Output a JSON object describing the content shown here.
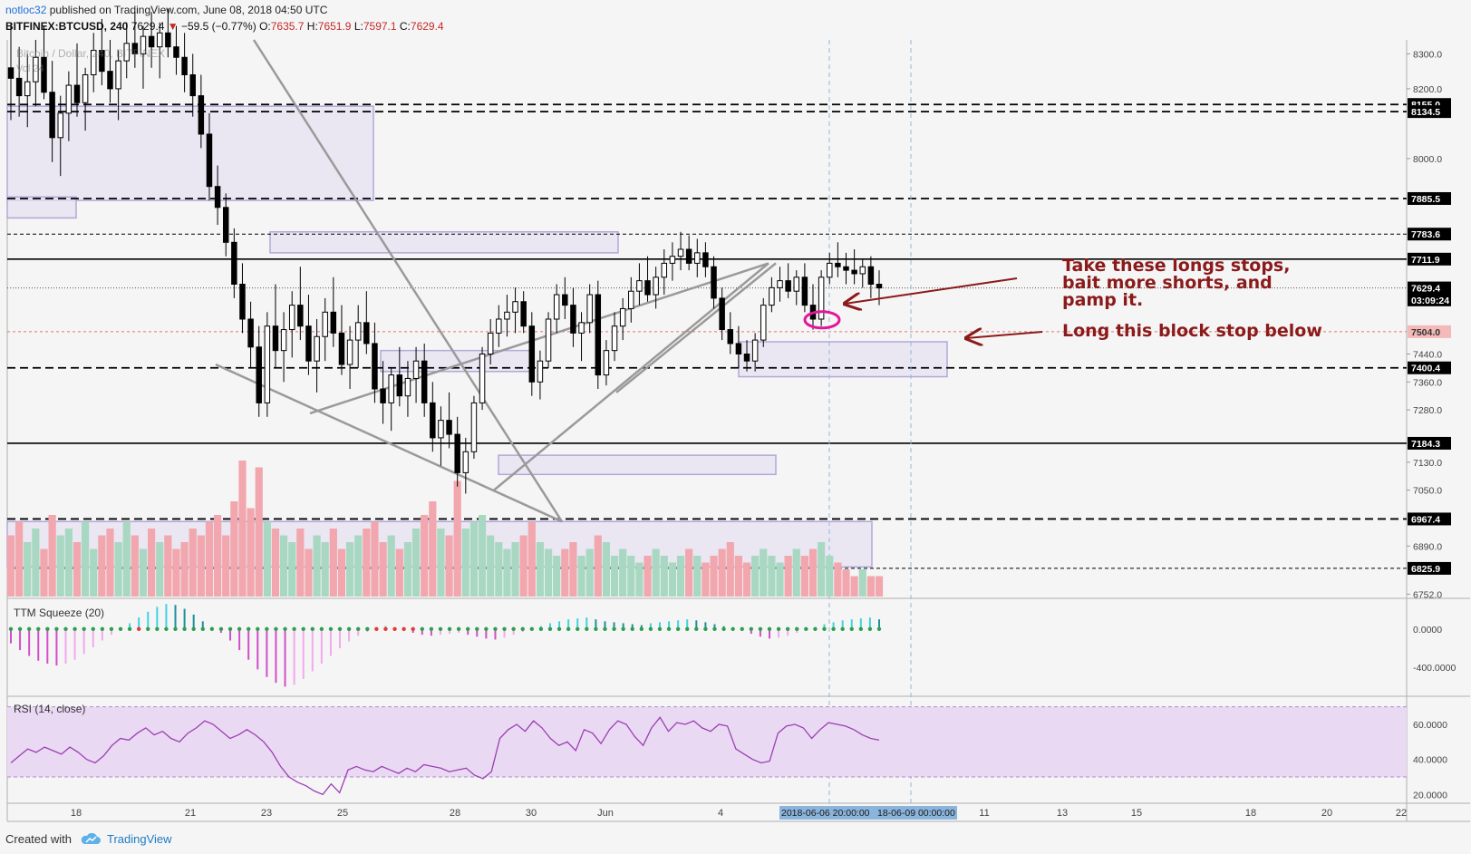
{
  "header": {
    "user": "notloc32",
    "published": "published on TradingView.com, June 08, 2018 04:50 UTC",
    "symbol": "BITFINEX:BTCUSD, 240",
    "last": "7629.4",
    "change": "−59.5 (−0.77%)",
    "o_label": "O:",
    "o": "7635.7",
    "h_label": "H:",
    "h": "7651.9",
    "l_label": "L:",
    "l": "7597.1",
    "c_label": "C:",
    "c": "7629.4",
    "ghost_legend": "Bitcoin / Dollar, 240, BITFINEX",
    "ghost_vol": "Vol 24"
  },
  "annotations": {
    "note1": "Take these longs stops,\nbait more shorts, and\npamp it.",
    "note2": "Long this block stop below"
  },
  "footer": {
    "created": "Created with",
    "brand": "TradingView"
  },
  "colors": {
    "up": "#ffffff",
    "down": "#000000",
    "annotation": "#8b1a1a",
    "box_fill": "#e6e1f2",
    "box_stroke": "#b3a8d8",
    "vol_up": "#a8d8c2",
    "vol_down": "#f1a7ad",
    "rsi_bg": "#ead9f2",
    "rsi_line": "#9c3fb5",
    "highlight_circle": "#e3169a"
  },
  "chart_data": [
    {
      "type": "candlestick",
      "title": "BITFINEX:BTCUSD, 240",
      "y_ticks": [
        8300.0,
        8200.0,
        8000.0,
        7440.0,
        7360.0,
        7280.0,
        7130.0,
        7050.0,
        6890.0,
        6752.0
      ],
      "ylim": [
        6740,
        8340
      ],
      "x_ticks": [
        "18",
        "21",
        "23",
        "25",
        "28",
        "30",
        "Jun",
        "4",
        "11",
        "13",
        "15",
        "18",
        "20",
        "22"
      ],
      "crosshair_x_label": "2018-06-06 20:00:00",
      "crosshair_x_label2": "18-06-09 00:00:00",
      "horizontal_levels": [
        {
          "label": "8155.0",
          "value": 8155.0,
          "style": "dashed"
        },
        {
          "label": "8134.5",
          "value": 8134.5,
          "style": "dashed"
        },
        {
          "label": "7885.5",
          "value": 7885.5,
          "style": "dashed"
        },
        {
          "label": "7783.6",
          "value": 7783.6,
          "style": "dotted"
        },
        {
          "label": "7711.9",
          "value": 7711.9,
          "style": "solid"
        },
        {
          "label": "7629.4",
          "value": 7629.4,
          "style": "price"
        },
        {
          "label": "03:09:24",
          "value": 7595.0,
          "style": "timer"
        },
        {
          "label": "7504.0",
          "value": 7504.0,
          "style": "red"
        },
        {
          "label": "7400.4",
          "value": 7400.4,
          "style": "dashed"
        },
        {
          "label": "7184.3",
          "value": 7184.3,
          "style": "solid"
        },
        {
          "label": "6967.4",
          "value": 6967.4,
          "style": "dashed"
        },
        {
          "label": "6825.9",
          "value": 6825.9,
          "style": "dotted"
        }
      ],
      "candles": [
        [
          8260,
          8390,
          8110,
          8230
        ],
        [
          8230,
          8320,
          8120,
          8180
        ],
        [
          8180,
          8300,
          8090,
          8220
        ],
        [
          8220,
          8340,
          8150,
          8290
        ],
        [
          8290,
          8380,
          8170,
          8190
        ],
        [
          8190,
          8280,
          7990,
          8060
        ],
        [
          8060,
          8180,
          7950,
          8130
        ],
        [
          8130,
          8250,
          8050,
          8210
        ],
        [
          8210,
          8330,
          8120,
          8160
        ],
        [
          8160,
          8260,
          8080,
          8240
        ],
        [
          8240,
          8360,
          8190,
          8310
        ],
        [
          8310,
          8400,
          8210,
          8250
        ],
        [
          8250,
          8340,
          8160,
          8200
        ],
        [
          8200,
          8310,
          8110,
          8280
        ],
        [
          8280,
          8390,
          8230,
          8330
        ],
        [
          8330,
          8420,
          8260,
          8300
        ],
        [
          8300,
          8380,
          8200,
          8350
        ],
        [
          8350,
          8420,
          8260,
          8320
        ],
        [
          8320,
          8390,
          8230,
          8360
        ],
        [
          8360,
          8430,
          8290,
          8320
        ],
        [
          8320,
          8380,
          8240,
          8290
        ],
        [
          8290,
          8360,
          8190,
          8240
        ],
        [
          8240,
          8300,
          8120,
          8180
        ],
        [
          8180,
          8240,
          8030,
          8070
        ],
        [
          8070,
          8130,
          7880,
          7920
        ],
        [
          7920,
          7980,
          7810,
          7860
        ],
        [
          7860,
          7900,
          7720,
          7760
        ],
        [
          7760,
          7800,
          7600,
          7640
        ],
        [
          7640,
          7700,
          7500,
          7540
        ],
        [
          7540,
          7590,
          7400,
          7460
        ],
        [
          7460,
          7520,
          7260,
          7300
        ],
        [
          7300,
          7560,
          7260,
          7520
        ],
        [
          7520,
          7640,
          7400,
          7450
        ],
        [
          7450,
          7560,
          7360,
          7510
        ],
        [
          7510,
          7620,
          7430,
          7580
        ],
        [
          7580,
          7690,
          7480,
          7520
        ],
        [
          7520,
          7610,
          7380,
          7420
        ],
        [
          7420,
          7540,
          7330,
          7490
        ],
        [
          7490,
          7600,
          7420,
          7560
        ],
        [
          7560,
          7660,
          7460,
          7500
        ],
        [
          7500,
          7580,
          7380,
          7410
        ],
        [
          7410,
          7520,
          7340,
          7480
        ],
        [
          7480,
          7580,
          7400,
          7530
        ],
        [
          7530,
          7620,
          7440,
          7470
        ],
        [
          7470,
          7530,
          7300,
          7340
        ],
        [
          7340,
          7420,
          7240,
          7300
        ],
        [
          7300,
          7400,
          7220,
          7380
        ],
        [
          7380,
          7460,
          7290,
          7320
        ],
        [
          7320,
          7420,
          7260,
          7370
        ],
        [
          7370,
          7460,
          7300,
          7420
        ],
        [
          7420,
          7470,
          7260,
          7300
        ],
        [
          7300,
          7360,
          7160,
          7200
        ],
        [
          7200,
          7290,
          7120,
          7250
        ],
        [
          7250,
          7330,
          7170,
          7210
        ],
        [
          7210,
          7260,
          7060,
          7100
        ],
        [
          7100,
          7200,
          7040,
          7160
        ],
        [
          7160,
          7320,
          7140,
          7300
        ],
        [
          7300,
          7460,
          7280,
          7440
        ],
        [
          7440,
          7540,
          7410,
          7500
        ],
        [
          7500,
          7580,
          7460,
          7540
        ],
        [
          7540,
          7610,
          7490,
          7560
        ],
        [
          7560,
          7630,
          7500,
          7590
        ],
        [
          7590,
          7620,
          7500,
          7520
        ],
        [
          7520,
          7560,
          7320,
          7360
        ],
        [
          7360,
          7450,
          7310,
          7420
        ],
        [
          7420,
          7560,
          7400,
          7540
        ],
        [
          7540,
          7640,
          7500,
          7610
        ],
        [
          7610,
          7660,
          7540,
          7580
        ],
        [
          7580,
          7630,
          7460,
          7500
        ],
        [
          7500,
          7560,
          7420,
          7530
        ],
        [
          7530,
          7640,
          7500,
          7610
        ],
        [
          7610,
          7650,
          7340,
          7380
        ],
        [
          7380,
          7480,
          7350,
          7450
        ],
        [
          7450,
          7560,
          7420,
          7520
        ],
        [
          7520,
          7600,
          7480,
          7570
        ],
        [
          7570,
          7660,
          7530,
          7620
        ],
        [
          7620,
          7700,
          7580,
          7650
        ],
        [
          7650,
          7720,
          7590,
          7610
        ],
        [
          7610,
          7690,
          7570,
          7660
        ],
        [
          7660,
          7740,
          7610,
          7700
        ],
        [
          7700,
          7760,
          7650,
          7720
        ],
        [
          7720,
          7790,
          7680,
          7740
        ],
        [
          7740,
          7780,
          7680,
          7700
        ],
        [
          7700,
          7770,
          7660,
          7730
        ],
        [
          7730,
          7760,
          7660,
          7690
        ],
        [
          7690,
          7720,
          7570,
          7600
        ],
        [
          7600,
          7630,
          7480,
          7510
        ],
        [
          7510,
          7560,
          7440,
          7470
        ],
        [
          7470,
          7520,
          7400,
          7440
        ],
        [
          7440,
          7480,
          7390,
          7420
        ],
        [
          7420,
          7500,
          7390,
          7480
        ],
        [
          7480,
          7600,
          7460,
          7580
        ],
        [
          7580,
          7660,
          7560,
          7630
        ],
        [
          7630,
          7690,
          7590,
          7650
        ],
        [
          7650,
          7700,
          7600,
          7620
        ],
        [
          7620,
          7680,
          7580,
          7660
        ],
        [
          7660,
          7700,
          7560,
          7580
        ],
        [
          7580,
          7640,
          7510,
          7540
        ],
        [
          7540,
          7680,
          7520,
          7660
        ],
        [
          7660,
          7730,
          7640,
          7700
        ],
        [
          7700,
          7760,
          7660,
          7690
        ],
        [
          7690,
          7730,
          7640,
          7680
        ],
        [
          7680,
          7740,
          7640,
          7670
        ],
        [
          7670,
          7710,
          7630,
          7690
        ],
        [
          7690,
          7720,
          7600,
          7640
        ],
        [
          7640,
          7680,
          7580,
          7629.4
        ]
      ]
    },
    {
      "type": "bar",
      "title": "Volume",
      "values_note": "relative volume per candle (0-1)",
      "values": [
        0.45,
        0.55,
        0.4,
        0.5,
        0.35,
        0.6,
        0.45,
        0.5,
        0.4,
        0.55,
        0.35,
        0.45,
        0.5,
        0.4,
        0.55,
        0.45,
        0.35,
        0.5,
        0.4,
        0.45,
        0.35,
        0.4,
        0.5,
        0.45,
        0.55,
        0.6,
        0.45,
        0.7,
        1.0,
        0.65,
        0.95,
        0.55,
        0.5,
        0.45,
        0.4,
        0.5,
        0.35,
        0.45,
        0.4,
        0.5,
        0.35,
        0.4,
        0.45,
        0.5,
        0.55,
        0.4,
        0.45,
        0.35,
        0.4,
        0.5,
        0.6,
        0.7,
        0.5,
        0.45,
        0.85,
        0.5,
        0.55,
        0.6,
        0.45,
        0.4,
        0.35,
        0.4,
        0.45,
        0.55,
        0.4,
        0.35,
        0.3,
        0.35,
        0.4,
        0.3,
        0.35,
        0.45,
        0.4,
        0.3,
        0.35,
        0.3,
        0.25,
        0.3,
        0.35,
        0.3,
        0.25,
        0.3,
        0.35,
        0.3,
        0.25,
        0.3,
        0.35,
        0.4,
        0.3,
        0.25,
        0.3,
        0.35,
        0.3,
        0.25,
        0.3,
        0.35,
        0.3,
        0.35,
        0.4,
        0.3,
        0.25,
        0.2,
        0.15,
        0.2,
        0.15,
        0.15
      ]
    },
    {
      "type": "bar",
      "title": "TTM Squeeze (20)",
      "y_ticks": [
        0.0,
        -400.0
      ],
      "y_tick_labels": [
        "0.0000",
        "-400.0000"
      ],
      "ylim": [
        -700,
        300
      ],
      "values": [
        -150,
        -220,
        -280,
        -330,
        -360,
        -380,
        -360,
        -320,
        -260,
        -190,
        -120,
        -60,
        0,
        60,
        120,
        180,
        230,
        260,
        250,
        210,
        150,
        80,
        20,
        -40,
        -120,
        -220,
        -320,
        -420,
        -500,
        -560,
        -600,
        -580,
        -520,
        -440,
        -360,
        -280,
        -200,
        -130,
        -70,
        -30,
        10,
        30,
        0,
        -20,
        -40,
        -60,
        -70,
        -60,
        -50,
        -40,
        -60,
        -80,
        -100,
        -110,
        -90,
        -60,
        -30,
        0,
        30,
        60,
        80,
        100,
        110,
        120,
        100,
        80,
        70,
        60,
        50,
        40,
        60,
        70,
        80,
        90,
        100,
        90,
        70,
        50,
        30,
        10,
        -20,
        -50,
        -80,
        -100,
        -90,
        -70,
        -40,
        -10,
        20,
        50,
        70,
        90,
        100,
        110,
        120,
        100
      ]
    },
    {
      "type": "line",
      "title": "RSI (14, close)",
      "y_ticks": [
        60.0,
        40.0,
        20.0
      ],
      "y_tick_labels": [
        "60.0000",
        "40.0000",
        "20.0000"
      ],
      "band": [
        30,
        70
      ],
      "ylim": [
        15,
        75
      ],
      "values": [
        38,
        42,
        46,
        44,
        47,
        45,
        43,
        47,
        44,
        40,
        38,
        42,
        48,
        52,
        51,
        55,
        58,
        54,
        56,
        52,
        50,
        55,
        58,
        62,
        60,
        56,
        52,
        54,
        57,
        54,
        50,
        44,
        36,
        30,
        27,
        25,
        22,
        20,
        26,
        21,
        34,
        36,
        34,
        33,
        36,
        34,
        32,
        35,
        33,
        37,
        36,
        35,
        33,
        34,
        35,
        31,
        29,
        33,
        52,
        57,
        60,
        56,
        62,
        58,
        52,
        48,
        50,
        45,
        57,
        55,
        49,
        57,
        62,
        60,
        53,
        48,
        58,
        64,
        56,
        61,
        60,
        62,
        58,
        56,
        60,
        59,
        46,
        43,
        40,
        38,
        39,
        55,
        59,
        60,
        58,
        52,
        57,
        61,
        60,
        59,
        57,
        54,
        52,
        51
      ]
    }
  ]
}
